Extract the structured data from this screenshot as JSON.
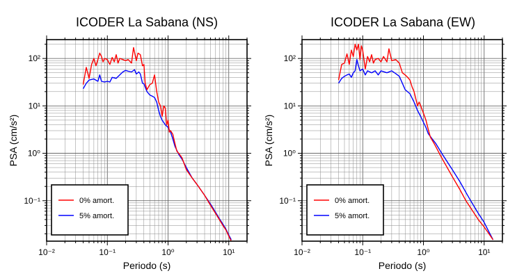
{
  "chart_data": [
    {
      "type": "line",
      "title": "ICODER La Sabana (NS)",
      "xlabel": "Periodo (s)",
      "ylabel": "PSA (cm/s²)",
      "xscale": "log",
      "yscale": "log",
      "xlim": [
        0.01,
        20
      ],
      "ylim": [
        0.014,
        250
      ],
      "grid": true,
      "legend": "bottom-left",
      "xticks": [
        "10⁻²",
        "10⁻¹",
        "10⁰",
        "10¹"
      ],
      "yticks": [
        "10⁻¹",
        "10⁰",
        "10¹",
        "10²"
      ],
      "series": [
        {
          "name": "0% amort.",
          "color": "#ff0000",
          "points": [
            [
              0.04,
              28
            ],
            [
              0.045,
              65
            ],
            [
              0.05,
              38
            ],
            [
              0.055,
              75
            ],
            [
              0.06,
              100
            ],
            [
              0.065,
              70
            ],
            [
              0.07,
              95
            ],
            [
              0.075,
              130
            ],
            [
              0.08,
              110
            ],
            [
              0.085,
              85
            ],
            [
              0.09,
              100
            ],
            [
              0.1,
              95
            ],
            [
              0.11,
              75
            ],
            [
              0.12,
              105
            ],
            [
              0.13,
              85
            ],
            [
              0.14,
              120
            ],
            [
              0.15,
              80
            ],
            [
              0.16,
              100
            ],
            [
              0.18,
              95
            ],
            [
              0.2,
              90
            ],
            [
              0.22,
              95
            ],
            [
              0.25,
              80
            ],
            [
              0.27,
              170
            ],
            [
              0.3,
              90
            ],
            [
              0.32,
              130
            ],
            [
              0.35,
              120
            ],
            [
              0.38,
              70
            ],
            [
              0.4,
              75
            ],
            [
              0.42,
              30
            ],
            [
              0.45,
              22
            ],
            [
              0.5,
              28
            ],
            [
              0.55,
              30
            ],
            [
              0.6,
              45
            ],
            [
              0.65,
              20
            ],
            [
              0.7,
              12
            ],
            [
              0.75,
              10
            ],
            [
              0.8,
              6
            ],
            [
              0.85,
              10
            ],
            [
              0.9,
              9
            ],
            [
              0.95,
              4
            ],
            [
              1.0,
              5
            ],
            [
              1.05,
              2.8
            ],
            [
              1.1,
              3
            ],
            [
              1.2,
              2.5
            ],
            [
              1.3,
              1.6
            ],
            [
              1.4,
              1.1
            ],
            [
              1.5,
              1.0
            ],
            [
              1.7,
              0.8
            ],
            [
              2.0,
              0.45
            ],
            [
              2.5,
              0.3
            ],
            [
              3.0,
              0.22
            ],
            [
              4.0,
              0.13
            ],
            [
              5.0,
              0.08
            ],
            [
              6.0,
              0.055
            ],
            [
              7.0,
              0.04
            ],
            [
              8.0,
              0.03
            ],
            [
              9.0,
              0.024
            ],
            [
              10.0,
              0.018
            ],
            [
              11.0,
              0.014
            ]
          ]
        },
        {
          "name": "5% amort.",
          "color": "#0000ff",
          "points": [
            [
              0.04,
              23
            ],
            [
              0.045,
              30
            ],
            [
              0.05,
              35
            ],
            [
              0.06,
              37
            ],
            [
              0.07,
              33
            ],
            [
              0.075,
              45
            ],
            [
              0.08,
              33
            ],
            [
              0.09,
              32
            ],
            [
              0.1,
              33
            ],
            [
              0.11,
              32
            ],
            [
              0.12,
              40
            ],
            [
              0.14,
              38
            ],
            [
              0.16,
              45
            ],
            [
              0.18,
              52
            ],
            [
              0.2,
              56
            ],
            [
              0.22,
              54
            ],
            [
              0.25,
              52
            ],
            [
              0.28,
              58
            ],
            [
              0.3,
              47
            ],
            [
              0.33,
              52
            ],
            [
              0.35,
              47
            ],
            [
              0.38,
              30
            ],
            [
              0.4,
              29
            ],
            [
              0.45,
              20
            ],
            [
              0.5,
              17
            ],
            [
              0.55,
              16
            ],
            [
              0.6,
              15
            ],
            [
              0.65,
              12
            ],
            [
              0.7,
              8
            ],
            [
              0.75,
              6
            ],
            [
              0.8,
              5
            ],
            [
              0.9,
              4
            ],
            [
              1.0,
              3.5
            ],
            [
              1.1,
              2.8
            ],
            [
              1.2,
              2.0
            ],
            [
              1.3,
              1.4
            ],
            [
              1.5,
              0.95
            ],
            [
              1.7,
              0.75
            ],
            [
              2.0,
              0.5
            ],
            [
              2.5,
              0.3
            ],
            [
              3.0,
              0.22
            ],
            [
              4.0,
              0.13
            ],
            [
              5.0,
              0.085
            ],
            [
              6.0,
              0.058
            ],
            [
              7.0,
              0.042
            ],
            [
              8.0,
              0.032
            ],
            [
              9.0,
              0.025
            ],
            [
              10.0,
              0.019
            ],
            [
              11.0,
              0.015
            ]
          ]
        }
      ]
    },
    {
      "type": "line",
      "title": "ICODER La Sabana (EW)",
      "xlabel": "Periodo (s)",
      "ylabel": "PSA (cm/s²)",
      "xscale": "log",
      "yscale": "log",
      "xlim": [
        0.01,
        20
      ],
      "ylim": [
        0.014,
        250
      ],
      "grid": true,
      "legend": "bottom-left",
      "xticks": [
        "10⁻²",
        "10⁻¹",
        "10⁰",
        "10¹"
      ],
      "yticks": [
        "10⁻¹",
        "10⁰",
        "10¹",
        "10²"
      ],
      "series": [
        {
          "name": "0% amort.",
          "color": "#ff0000",
          "points": [
            [
              0.04,
              35
            ],
            [
              0.045,
              75
            ],
            [
              0.05,
              80
            ],
            [
              0.055,
              125
            ],
            [
              0.06,
              75
            ],
            [
              0.065,
              150
            ],
            [
              0.07,
              110
            ],
            [
              0.075,
              200
            ],
            [
              0.08,
              150
            ],
            [
              0.085,
              200
            ],
            [
              0.09,
              95
            ],
            [
              0.095,
              185
            ],
            [
              0.1,
              150
            ],
            [
              0.11,
              60
            ],
            [
              0.12,
              110
            ],
            [
              0.13,
              85
            ],
            [
              0.14,
              120
            ],
            [
              0.15,
              80
            ],
            [
              0.16,
              95
            ],
            [
              0.18,
              100
            ],
            [
              0.2,
              85
            ],
            [
              0.22,
              110
            ],
            [
              0.25,
              85
            ],
            [
              0.27,
              160
            ],
            [
              0.3,
              90
            ],
            [
              0.35,
              95
            ],
            [
              0.4,
              80
            ],
            [
              0.45,
              50
            ],
            [
              0.5,
              45
            ],
            [
              0.55,
              40
            ],
            [
              0.6,
              35
            ],
            [
              0.65,
              25
            ],
            [
              0.7,
              20
            ],
            [
              0.75,
              14
            ],
            [
              0.8,
              10
            ],
            [
              0.85,
              12
            ],
            [
              0.9,
              10
            ],
            [
              1.0,
              7
            ],
            [
              1.1,
              5
            ],
            [
              1.2,
              3.2
            ],
            [
              1.3,
              2.2
            ],
            [
              1.5,
              1.6
            ],
            [
              2.0,
              0.8
            ],
            [
              3.0,
              0.32
            ],
            [
              4.0,
              0.17
            ],
            [
              5.0,
              0.1
            ],
            [
              6.0,
              0.07
            ],
            [
              7.0,
              0.052
            ],
            [
              8.0,
              0.04
            ],
            [
              10.0,
              0.028
            ],
            [
              12.0,
              0.02
            ],
            [
              14.0,
              0.015
            ]
          ]
        },
        {
          "name": "5% amort.",
          "color": "#0000ff",
          "points": [
            [
              0.04,
              30
            ],
            [
              0.045,
              38
            ],
            [
              0.05,
              42
            ],
            [
              0.055,
              45
            ],
            [
              0.06,
              47
            ],
            [
              0.065,
              40
            ],
            [
              0.07,
              50
            ],
            [
              0.075,
              55
            ],
            [
              0.08,
              95
            ],
            [
              0.085,
              70
            ],
            [
              0.09,
              55
            ],
            [
              0.1,
              60
            ],
            [
              0.11,
              45
            ],
            [
              0.12,
              55
            ],
            [
              0.14,
              50
            ],
            [
              0.16,
              55
            ],
            [
              0.18,
              45
            ],
            [
              0.2,
              55
            ],
            [
              0.25,
              50
            ],
            [
              0.3,
              55
            ],
            [
              0.35,
              48
            ],
            [
              0.4,
              42
            ],
            [
              0.45,
              30
            ],
            [
              0.5,
              22
            ],
            [
              0.6,
              18
            ],
            [
              0.7,
              12
            ],
            [
              0.8,
              8
            ],
            [
              0.9,
              6
            ],
            [
              1.0,
              4.5
            ],
            [
              1.1,
              3.5
            ],
            [
              1.2,
              2.6
            ],
            [
              1.4,
              2.0
            ],
            [
              1.6,
              1.6
            ],
            [
              2.0,
              1.0
            ],
            [
              3.0,
              0.45
            ],
            [
              4.0,
              0.25
            ],
            [
              5.0,
              0.15
            ],
            [
              6.0,
              0.1
            ],
            [
              7.0,
              0.072
            ],
            [
              8.0,
              0.054
            ],
            [
              10.0,
              0.035
            ],
            [
              12.0,
              0.022
            ],
            [
              14.0,
              0.015
            ]
          ]
        }
      ]
    }
  ]
}
